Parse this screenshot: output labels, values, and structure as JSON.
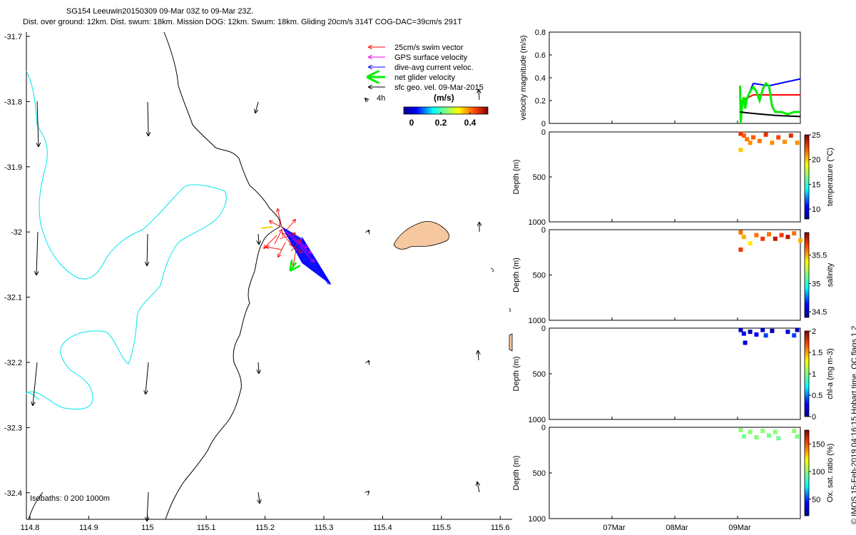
{
  "header": {
    "line1": "SG154 Leeuwin20150309 09-Mar 03Z to 09-Mar 23Z.",
    "line2": "Dist. over ground: 12km. Dist. swum: 18km. Mission DOG: 12km. Swum: 18km. Gliding 20cm/s 314T COG-DAC=39cm/s 291T"
  },
  "footer_note": "© IMOS 15-Feb-2019 04:16:15 Hobart time. QC flags 1  2",
  "colors": {
    "coast": "#000000",
    "isobath": "#00e5ee",
    "land": "#f7c8a0",
    "swim": "#ff0000",
    "gps": "#ee00ee",
    "dac": "#0000ff",
    "net": "#00ee00",
    "geo": "#000000"
  },
  "map": {
    "legend": [
      {
        "label": "25cm/s swim vector",
        "color": "#ff0000",
        "key": "swim"
      },
      {
        "label": "GPS surface velocity",
        "color": "#ee00ee",
        "key": "gps"
      },
      {
        "label": "dive-avg current veloc.",
        "color": "#0000ff",
        "key": "dac"
      },
      {
        "label": "net glider velocity",
        "color": "#00ee00",
        "key": "net"
      },
      {
        "label": "sfc geo. vel. 09-Mar-2015",
        "color": "#000000",
        "key": "geo"
      }
    ],
    "ref_label": "4h",
    "colorbar_title": "(m/s)",
    "colorbar_ticks": [
      "0",
      "0.2",
      "0.4"
    ],
    "isobaths_label": "Isobaths: 0   200  1000m",
    "x_ticks": [
      "114.8",
      "114.9",
      "115",
      "115.1",
      "115.2",
      "115.3",
      "115.4",
      "115.5",
      "115.6"
    ],
    "y_ticks": [
      "-31.7",
      "-31.8",
      "-31.9",
      "-32",
      "-32.1",
      "-32.2",
      "-32.3",
      "-32.4"
    ]
  },
  "chart_data": [
    {
      "type": "line",
      "ylabel": "velocity magnitude (m/s)",
      "ylim": [
        0,
        0.8
      ],
      "y_ticks": [
        "0",
        "0.2",
        "0.4",
        "0.6",
        "0.8"
      ],
      "x_ticks": [
        "07Mar",
        "08Mar",
        "09Mar"
      ],
      "x_range": [
        6.0,
        10.0
      ],
      "series": [
        {
          "key": "dac",
          "color": "#0000ff",
          "x": [
            9.04,
            9.15,
            9.25,
            9.5,
            9.75,
            10.0
          ],
          "values": [
            0.19,
            0.22,
            0.35,
            0.33,
            0.36,
            0.39
          ]
        },
        {
          "key": "swim",
          "color": "#ff0000",
          "x": [
            9.04,
            9.25,
            9.5,
            9.75,
            10.0
          ],
          "values": [
            0.19,
            0.25,
            0.25,
            0.25,
            0.25
          ]
        },
        {
          "key": "net",
          "color": "#00ee00",
          "x": [
            9.04,
            9.05,
            9.08,
            9.1,
            9.12,
            9.15,
            9.2,
            9.25,
            9.3,
            9.35,
            9.4,
            9.45,
            9.5,
            9.55,
            9.6,
            9.7,
            9.8,
            9.9,
            10.0
          ],
          "values": [
            0.33,
            0.0,
            0.2,
            0.23,
            0.13,
            0.22,
            0.28,
            0.32,
            0.28,
            0.2,
            0.3,
            0.35,
            0.33,
            0.15,
            0.1,
            0.1,
            0.08,
            0.1,
            0.1
          ]
        },
        {
          "key": "geo",
          "color": "#000000",
          "x": [
            9.04,
            9.2,
            9.4,
            9.6,
            9.8,
            10.0
          ],
          "values": [
            0.1,
            0.09,
            0.08,
            0.07,
            0.065,
            0.06
          ]
        }
      ]
    },
    {
      "type": "scatter",
      "ylabel": "Depth (m)",
      "cbar_label": "temperature (°C)",
      "ylim": [
        1000,
        0
      ],
      "y_ticks": [
        "0",
        "500",
        "1000"
      ],
      "clim": [
        8,
        25
      ],
      "cbar_ticks": [
        "10",
        "15",
        "20",
        "25"
      ],
      "x_range": [
        6.0,
        10.0
      ],
      "points": [
        {
          "x": 9.05,
          "depth": 20,
          "v": 23
        },
        {
          "x": 9.1,
          "depth": 40,
          "v": 22
        },
        {
          "x": 9.15,
          "depth": 80,
          "v": 21.5
        },
        {
          "x": 9.2,
          "depth": 120,
          "v": 21
        },
        {
          "x": 9.25,
          "depth": 60,
          "v": 22
        },
        {
          "x": 9.35,
          "depth": 100,
          "v": 21.5
        },
        {
          "x": 9.45,
          "depth": 30,
          "v": 23
        },
        {
          "x": 9.55,
          "depth": 120,
          "v": 21
        },
        {
          "x": 9.65,
          "depth": 60,
          "v": 22.5
        },
        {
          "x": 9.75,
          "depth": 110,
          "v": 21
        },
        {
          "x": 9.85,
          "depth": 40,
          "v": 23
        },
        {
          "x": 9.95,
          "depth": 120,
          "v": 21
        },
        {
          "x": 9.05,
          "depth": 200,
          "v": 20
        }
      ]
    },
    {
      "type": "scatter",
      "ylabel": "Depth (m)",
      "cbar_label": "salinity",
      "ylim": [
        1000,
        0
      ],
      "y_ticks": [
        "0",
        "500",
        "1000"
      ],
      "clim": [
        34.4,
        35.9
      ],
      "cbar_ticks": [
        "34.5",
        "35",
        "35.5"
      ],
      "x_range": [
        6.0,
        10.0
      ],
      "points": [
        {
          "x": 9.05,
          "depth": 30,
          "v": 35.6
        },
        {
          "x": 9.1,
          "depth": 80,
          "v": 35.5
        },
        {
          "x": 9.2,
          "depth": 150,
          "v": 35.4
        },
        {
          "x": 9.3,
          "depth": 60,
          "v": 35.6
        },
        {
          "x": 9.4,
          "depth": 100,
          "v": 35.7
        },
        {
          "x": 9.5,
          "depth": 50,
          "v": 35.6
        },
        {
          "x": 9.6,
          "depth": 100,
          "v": 35.8
        },
        {
          "x": 9.7,
          "depth": 60,
          "v": 35.7
        },
        {
          "x": 9.8,
          "depth": 80,
          "v": 35.8
        },
        {
          "x": 9.9,
          "depth": 40,
          "v": 35.6
        },
        {
          "x": 10.0,
          "depth": 120,
          "v": 35.5
        },
        {
          "x": 9.05,
          "depth": 220,
          "v": 35.7
        }
      ]
    },
    {
      "type": "scatter",
      "ylabel": "Depth (m)",
      "cbar_label": "chl-a (mg m-3)",
      "ylim": [
        1000,
        0
      ],
      "y_ticks": [
        "0",
        "500",
        "1000"
      ],
      "clim": [
        0,
        2
      ],
      "cbar_ticks": [
        "0",
        "0.5",
        "1",
        "1.5",
        "2"
      ],
      "x_range": [
        6.0,
        10.0
      ],
      "points": [
        {
          "x": 9.05,
          "depth": 20,
          "v": 0.1
        },
        {
          "x": 9.1,
          "depth": 60,
          "v": 0.3
        },
        {
          "x": 9.12,
          "depth": 160,
          "v": 0.2
        },
        {
          "x": 9.2,
          "depth": 40,
          "v": 0.1
        },
        {
          "x": 9.3,
          "depth": 70,
          "v": 0.3
        },
        {
          "x": 9.4,
          "depth": 20,
          "v": 0.1
        },
        {
          "x": 9.45,
          "depth": 80,
          "v": 0.4
        },
        {
          "x": 9.55,
          "depth": 30,
          "v": 0.1
        },
        {
          "x": 9.8,
          "depth": 40,
          "v": 0.2
        },
        {
          "x": 9.9,
          "depth": 80,
          "v": 0.4
        },
        {
          "x": 9.95,
          "depth": 20,
          "v": 0.1
        }
      ]
    },
    {
      "type": "scatter",
      "ylabel": "Depth (m)",
      "cbar_label": "Ox. sat. ratio (%)",
      "ylim": [
        1000,
        0
      ],
      "y_ticks": [
        "0",
        "500",
        "1000"
      ],
      "x_ticks": [
        "07Mar",
        "08Mar",
        "09Mar"
      ],
      "clim": [
        20,
        175
      ],
      "cbar_ticks": [
        "50",
        "100",
        "150"
      ],
      "x_range": [
        6.0,
        10.0
      ],
      "points": [
        {
          "x": 9.05,
          "depth": 30,
          "v": 100
        },
        {
          "x": 9.1,
          "depth": 100,
          "v": 95
        },
        {
          "x": 9.2,
          "depth": 50,
          "v": 100
        },
        {
          "x": 9.3,
          "depth": 110,
          "v": 98
        },
        {
          "x": 9.4,
          "depth": 40,
          "v": 100
        },
        {
          "x": 9.5,
          "depth": 90,
          "v": 96
        },
        {
          "x": 9.6,
          "depth": 50,
          "v": 100
        },
        {
          "x": 9.65,
          "depth": 120,
          "v": 95
        },
        {
          "x": 9.9,
          "depth": 40,
          "v": 100
        },
        {
          "x": 9.95,
          "depth": 100,
          "v": 97
        }
      ]
    }
  ]
}
